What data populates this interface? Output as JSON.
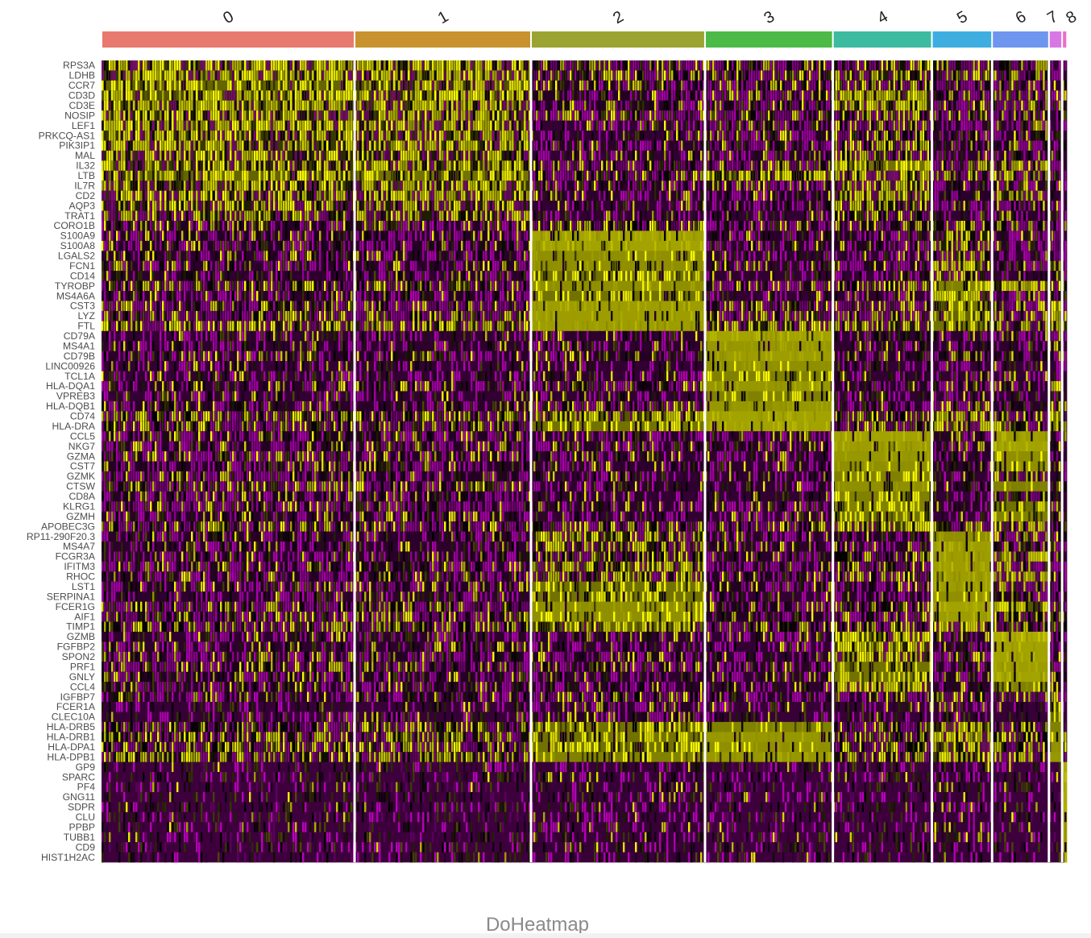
{
  "caption": "DoHeatmap",
  "chart_data": {
    "type": "heatmap",
    "title": "",
    "xlabel": "",
    "ylabel": "",
    "clusters": [
      {
        "label": "0",
        "color": "#E8796E",
        "fraction": 0.2648
      },
      {
        "label": "1",
        "color": "#C8922E",
        "fraction": 0.1846
      },
      {
        "label": "2",
        "color": "#9CA431",
        "fraction": 0.1821
      },
      {
        "label": "3",
        "color": "#4CBA47",
        "fraction": 0.1338
      },
      {
        "label": "4",
        "color": "#3DBBA0",
        "fraction": 0.1036
      },
      {
        "label": "5",
        "color": "#3EAEE0",
        "fraction": 0.063
      },
      {
        "label": "6",
        "color": "#6E96EF",
        "fraction": 0.0595
      },
      {
        "label": "7",
        "color": "#D878E4",
        "fraction": 0.0138
      },
      {
        "label": "8",
        "color": "#EB6FC8",
        "fraction": 0.0052
      }
    ],
    "genes": [
      "RPS3A",
      "LDHB",
      "CCR7",
      "CD3D",
      "CD3E",
      "NOSIP",
      "LEF1",
      "PRKCQ-AS1",
      "PIK3IP1",
      "MAL",
      "IL32",
      "LTB",
      "IL7R",
      "CD2",
      "AQP3",
      "TRAT1",
      "CORO1B",
      "S100A9",
      "S100A8",
      "LGALS2",
      "FCN1",
      "CD14",
      "TYROBP",
      "MS4A6A",
      "CST3",
      "LYZ",
      "FTL",
      "CD79A",
      "MS4A1",
      "CD79B",
      "LINC00926",
      "TCL1A",
      "HLA-DQA1",
      "VPREB3",
      "HLA-DQB1",
      "CD74",
      "HLA-DRA",
      "CCL5",
      "NKG7",
      "GZMA",
      "CST7",
      "GZMK",
      "CTSW",
      "CD8A",
      "KLRG1",
      "GZMH",
      "APOBEC3G",
      "RP11-290F20.3",
      "MS4A7",
      "FCGR3A",
      "IFITM3",
      "RHOC",
      "LST1",
      "SERPINA1",
      "FCER1G",
      "AIF1",
      "TIMP1",
      "GZMB",
      "FGFBP2",
      "SPON2",
      "PRF1",
      "GNLY",
      "CCL4",
      "IGFBP7",
      "FCER1A",
      "CLEC10A",
      "HLA-DRB5",
      "HLA-DRB1",
      "HLA-DPA1",
      "HLA-DPB1",
      "GP9",
      "SPARC",
      "PF4",
      "GNG11",
      "SDPR",
      "CLU",
      "PPBP",
      "TUBB1",
      "CD9",
      "HIST1H2AC"
    ],
    "expression_levels": {
      "low": 0.12,
      "mid": 0.5,
      "high": 0.85
    },
    "gene_cluster_expression": [
      [
        0.55,
        0.55,
        0.25,
        0.3,
        0.4,
        0.4,
        0.3,
        0.1,
        0.3
      ],
      [
        0.6,
        0.6,
        0.3,
        0.3,
        0.45,
        0.35,
        0.3,
        0.2,
        0.1
      ],
      [
        0.7,
        0.65,
        0.15,
        0.25,
        0.35,
        0.25,
        0.2,
        0.1,
        0.1
      ],
      [
        0.65,
        0.6,
        0.15,
        0.2,
        0.6,
        0.2,
        0.3,
        0.2,
        0.1
      ],
      [
        0.6,
        0.6,
        0.15,
        0.2,
        0.6,
        0.2,
        0.35,
        0.2,
        0.1
      ],
      [
        0.55,
        0.55,
        0.2,
        0.25,
        0.4,
        0.25,
        0.2,
        0.1,
        0.1
      ],
      [
        0.6,
        0.55,
        0.08,
        0.2,
        0.3,
        0.12,
        0.12,
        0.1,
        0.1
      ],
      [
        0.55,
        0.5,
        0.08,
        0.15,
        0.35,
        0.12,
        0.12,
        0.1,
        0.1
      ],
      [
        0.55,
        0.55,
        0.12,
        0.2,
        0.35,
        0.15,
        0.15,
        0.1,
        0.1
      ],
      [
        0.5,
        0.45,
        0.08,
        0.1,
        0.3,
        0.1,
        0.1,
        0.1,
        0.1
      ],
      [
        0.55,
        0.55,
        0.25,
        0.25,
        0.75,
        0.3,
        0.55,
        0.2,
        0.1
      ],
      [
        0.7,
        0.75,
        0.3,
        0.65,
        0.55,
        0.4,
        0.4,
        0.3,
        0.3
      ],
      [
        0.55,
        0.55,
        0.15,
        0.15,
        0.45,
        0.15,
        0.15,
        0.1,
        0.1
      ],
      [
        0.5,
        0.5,
        0.1,
        0.12,
        0.55,
        0.12,
        0.5,
        0.1,
        0.1
      ],
      [
        0.45,
        0.45,
        0.08,
        0.12,
        0.4,
        0.1,
        0.15,
        0.1,
        0.1
      ],
      [
        0.45,
        0.45,
        0.08,
        0.08,
        0.35,
        0.08,
        0.12,
        0.1,
        0.1
      ],
      [
        0.15,
        0.15,
        0.35,
        0.15,
        0.2,
        0.3,
        0.3,
        0.15,
        0.1
      ],
      [
        0.15,
        0.15,
        0.92,
        0.12,
        0.15,
        0.45,
        0.12,
        0.3,
        0.1
      ],
      [
        0.15,
        0.15,
        0.92,
        0.12,
        0.15,
        0.45,
        0.12,
        0.3,
        0.1
      ],
      [
        0.12,
        0.12,
        0.85,
        0.08,
        0.1,
        0.3,
        0.1,
        0.2,
        0.1
      ],
      [
        0.12,
        0.12,
        0.85,
        0.08,
        0.15,
        0.6,
        0.15,
        0.5,
        0.1
      ],
      [
        0.1,
        0.1,
        0.75,
        0.08,
        0.08,
        0.25,
        0.08,
        0.15,
        0.1
      ],
      [
        0.3,
        0.3,
        0.85,
        0.2,
        0.35,
        0.8,
        0.6,
        0.4,
        0.2
      ],
      [
        0.12,
        0.12,
        0.75,
        0.08,
        0.1,
        0.55,
        0.1,
        0.4,
        0.1
      ],
      [
        0.25,
        0.25,
        0.9,
        0.25,
        0.25,
        0.75,
        0.25,
        0.7,
        0.4
      ],
      [
        0.3,
        0.3,
        0.9,
        0.25,
        0.25,
        0.7,
        0.25,
        0.6,
        0.2
      ],
      [
        0.45,
        0.45,
        0.9,
        0.45,
        0.45,
        0.75,
        0.4,
        0.55,
        0.5
      ],
      [
        0.08,
        0.08,
        0.1,
        0.92,
        0.1,
        0.1,
        0.1,
        0.2,
        0.1
      ],
      [
        0.1,
        0.1,
        0.1,
        0.88,
        0.1,
        0.1,
        0.1,
        0.2,
        0.1
      ],
      [
        0.12,
        0.12,
        0.15,
        0.9,
        0.12,
        0.2,
        0.15,
        0.2,
        0.1
      ],
      [
        0.08,
        0.08,
        0.08,
        0.85,
        0.08,
        0.08,
        0.08,
        0.1,
        0.1
      ],
      [
        0.08,
        0.08,
        0.08,
        0.8,
        0.08,
        0.08,
        0.08,
        0.1,
        0.1
      ],
      [
        0.12,
        0.12,
        0.25,
        0.88,
        0.12,
        0.2,
        0.12,
        0.6,
        0.1
      ],
      [
        0.08,
        0.08,
        0.08,
        0.8,
        0.08,
        0.08,
        0.08,
        0.1,
        0.1
      ],
      [
        0.12,
        0.12,
        0.25,
        0.88,
        0.12,
        0.2,
        0.12,
        0.55,
        0.1
      ],
      [
        0.35,
        0.35,
        0.65,
        0.92,
        0.35,
        0.5,
        0.3,
        0.7,
        0.3
      ],
      [
        0.3,
        0.3,
        0.75,
        0.92,
        0.3,
        0.55,
        0.3,
        0.75,
        0.3
      ],
      [
        0.15,
        0.15,
        0.12,
        0.12,
        0.92,
        0.12,
        0.9,
        0.15,
        0.1
      ],
      [
        0.15,
        0.15,
        0.12,
        0.12,
        0.9,
        0.15,
        0.92,
        0.15,
        0.1
      ],
      [
        0.2,
        0.15,
        0.1,
        0.1,
        0.88,
        0.1,
        0.85,
        0.15,
        0.1
      ],
      [
        0.15,
        0.15,
        0.1,
        0.1,
        0.85,
        0.1,
        0.85,
        0.1,
        0.1
      ],
      [
        0.2,
        0.15,
        0.08,
        0.08,
        0.8,
        0.08,
        0.4,
        0.1,
        0.1
      ],
      [
        0.25,
        0.2,
        0.1,
        0.1,
        0.85,
        0.12,
        0.8,
        0.15,
        0.1
      ],
      [
        0.15,
        0.15,
        0.08,
        0.08,
        0.8,
        0.08,
        0.3,
        0.1,
        0.1
      ],
      [
        0.2,
        0.2,
        0.1,
        0.1,
        0.8,
        0.12,
        0.75,
        0.1,
        0.1
      ],
      [
        0.12,
        0.12,
        0.08,
        0.08,
        0.75,
        0.08,
        0.8,
        0.1,
        0.1
      ],
      [
        0.3,
        0.3,
        0.3,
        0.3,
        0.55,
        0.3,
        0.5,
        0.3,
        0.1
      ],
      [
        0.12,
        0.12,
        0.45,
        0.12,
        0.15,
        0.85,
        0.2,
        0.15,
        0.1
      ],
      [
        0.1,
        0.1,
        0.45,
        0.1,
        0.1,
        0.9,
        0.15,
        0.15,
        0.1
      ],
      [
        0.12,
        0.12,
        0.35,
        0.12,
        0.35,
        0.9,
        0.6,
        0.15,
        0.1
      ],
      [
        0.15,
        0.15,
        0.6,
        0.15,
        0.25,
        0.9,
        0.3,
        0.2,
        0.1
      ],
      [
        0.15,
        0.15,
        0.4,
        0.15,
        0.3,
        0.9,
        0.6,
        0.2,
        0.1
      ],
      [
        0.15,
        0.15,
        0.75,
        0.15,
        0.15,
        0.9,
        0.25,
        0.25,
        0.1
      ],
      [
        0.1,
        0.1,
        0.75,
        0.08,
        0.12,
        0.85,
        0.12,
        0.2,
        0.1
      ],
      [
        0.25,
        0.25,
        0.85,
        0.2,
        0.25,
        0.92,
        0.65,
        0.3,
        0.3
      ],
      [
        0.2,
        0.2,
        0.85,
        0.15,
        0.2,
        0.9,
        0.3,
        0.3,
        0.2
      ],
      [
        0.3,
        0.3,
        0.7,
        0.3,
        0.35,
        0.6,
        0.4,
        0.3,
        0.3
      ],
      [
        0.1,
        0.1,
        0.1,
        0.1,
        0.65,
        0.15,
        0.95,
        0.15,
        0.1
      ],
      [
        0.1,
        0.1,
        0.08,
        0.08,
        0.55,
        0.12,
        0.92,
        0.1,
        0.1
      ],
      [
        0.15,
        0.15,
        0.15,
        0.1,
        0.55,
        0.15,
        0.92,
        0.15,
        0.1
      ],
      [
        0.2,
        0.2,
        0.15,
        0.12,
        0.75,
        0.15,
        0.9,
        0.15,
        0.1
      ],
      [
        0.15,
        0.15,
        0.1,
        0.1,
        0.75,
        0.12,
        0.92,
        0.15,
        0.1
      ],
      [
        0.15,
        0.15,
        0.12,
        0.1,
        0.65,
        0.12,
        0.8,
        0.15,
        0.2
      ],
      [
        0.12,
        0.12,
        0.35,
        0.12,
        0.15,
        0.4,
        0.25,
        0.15,
        0.1
      ],
      [
        0.05,
        0.05,
        0.1,
        0.05,
        0.05,
        0.08,
        0.05,
        0.75,
        0.05
      ],
      [
        0.05,
        0.05,
        0.12,
        0.05,
        0.05,
        0.08,
        0.05,
        0.7,
        0.05
      ],
      [
        0.3,
        0.3,
        0.75,
        0.8,
        0.3,
        0.55,
        0.3,
        0.8,
        0.3
      ],
      [
        0.4,
        0.4,
        0.75,
        0.88,
        0.35,
        0.6,
        0.35,
        0.85,
        0.3
      ],
      [
        0.35,
        0.35,
        0.75,
        0.85,
        0.35,
        0.55,
        0.35,
        0.85,
        0.3
      ],
      [
        0.4,
        0.4,
        0.8,
        0.88,
        0.4,
        0.6,
        0.4,
        0.88,
        0.3
      ],
      [
        0.02,
        0.02,
        0.05,
        0.02,
        0.02,
        0.05,
        0.02,
        0.02,
        0.95
      ],
      [
        0.02,
        0.02,
        0.05,
        0.02,
        0.02,
        0.05,
        0.02,
        0.02,
        0.95
      ],
      [
        0.02,
        0.02,
        0.05,
        0.02,
        0.02,
        0.05,
        0.02,
        0.02,
        0.95
      ],
      [
        0.02,
        0.02,
        0.05,
        0.02,
        0.02,
        0.05,
        0.02,
        0.02,
        0.95
      ],
      [
        0.02,
        0.02,
        0.05,
        0.02,
        0.02,
        0.05,
        0.02,
        0.02,
        0.95
      ],
      [
        0.02,
        0.02,
        0.05,
        0.02,
        0.02,
        0.05,
        0.02,
        0.02,
        0.95
      ],
      [
        0.02,
        0.02,
        0.05,
        0.02,
        0.02,
        0.05,
        0.02,
        0.02,
        0.95
      ],
      [
        0.02,
        0.02,
        0.05,
        0.02,
        0.02,
        0.05,
        0.02,
        0.02,
        0.95
      ],
      [
        0.02,
        0.02,
        0.05,
        0.02,
        0.02,
        0.05,
        0.02,
        0.02,
        0.95
      ],
      [
        0.02,
        0.02,
        0.05,
        0.02,
        0.02,
        0.05,
        0.02,
        0.02,
        0.95
      ]
    ],
    "colorscale": [
      "#FF00FF",
      "#000000",
      "#FFFF00"
    ],
    "legend": "none",
    "grid": false
  }
}
